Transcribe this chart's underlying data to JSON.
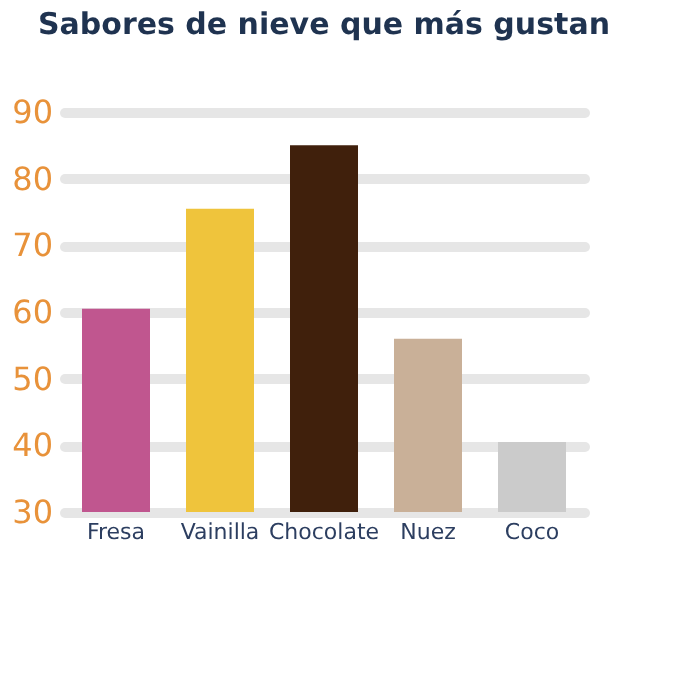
{
  "chart_data": {
    "type": "bar",
    "title": "Sabores de nieve que más gustan",
    "categories": [
      "Fresa",
      "Vainilla",
      "Chocolate",
      "Nuez",
      "Coco"
    ],
    "values": [
      60.5,
      75.5,
      85,
      56,
      40.5
    ],
    "colors": [
      "#c0568f",
      "#efc43c",
      "#40200c",
      "#c9b098",
      "#cbcbcb"
    ],
    "ylim": [
      30,
      90
    ],
    "yticks": [
      30,
      40,
      50,
      60,
      70,
      80,
      90
    ],
    "grid": "y"
  }
}
